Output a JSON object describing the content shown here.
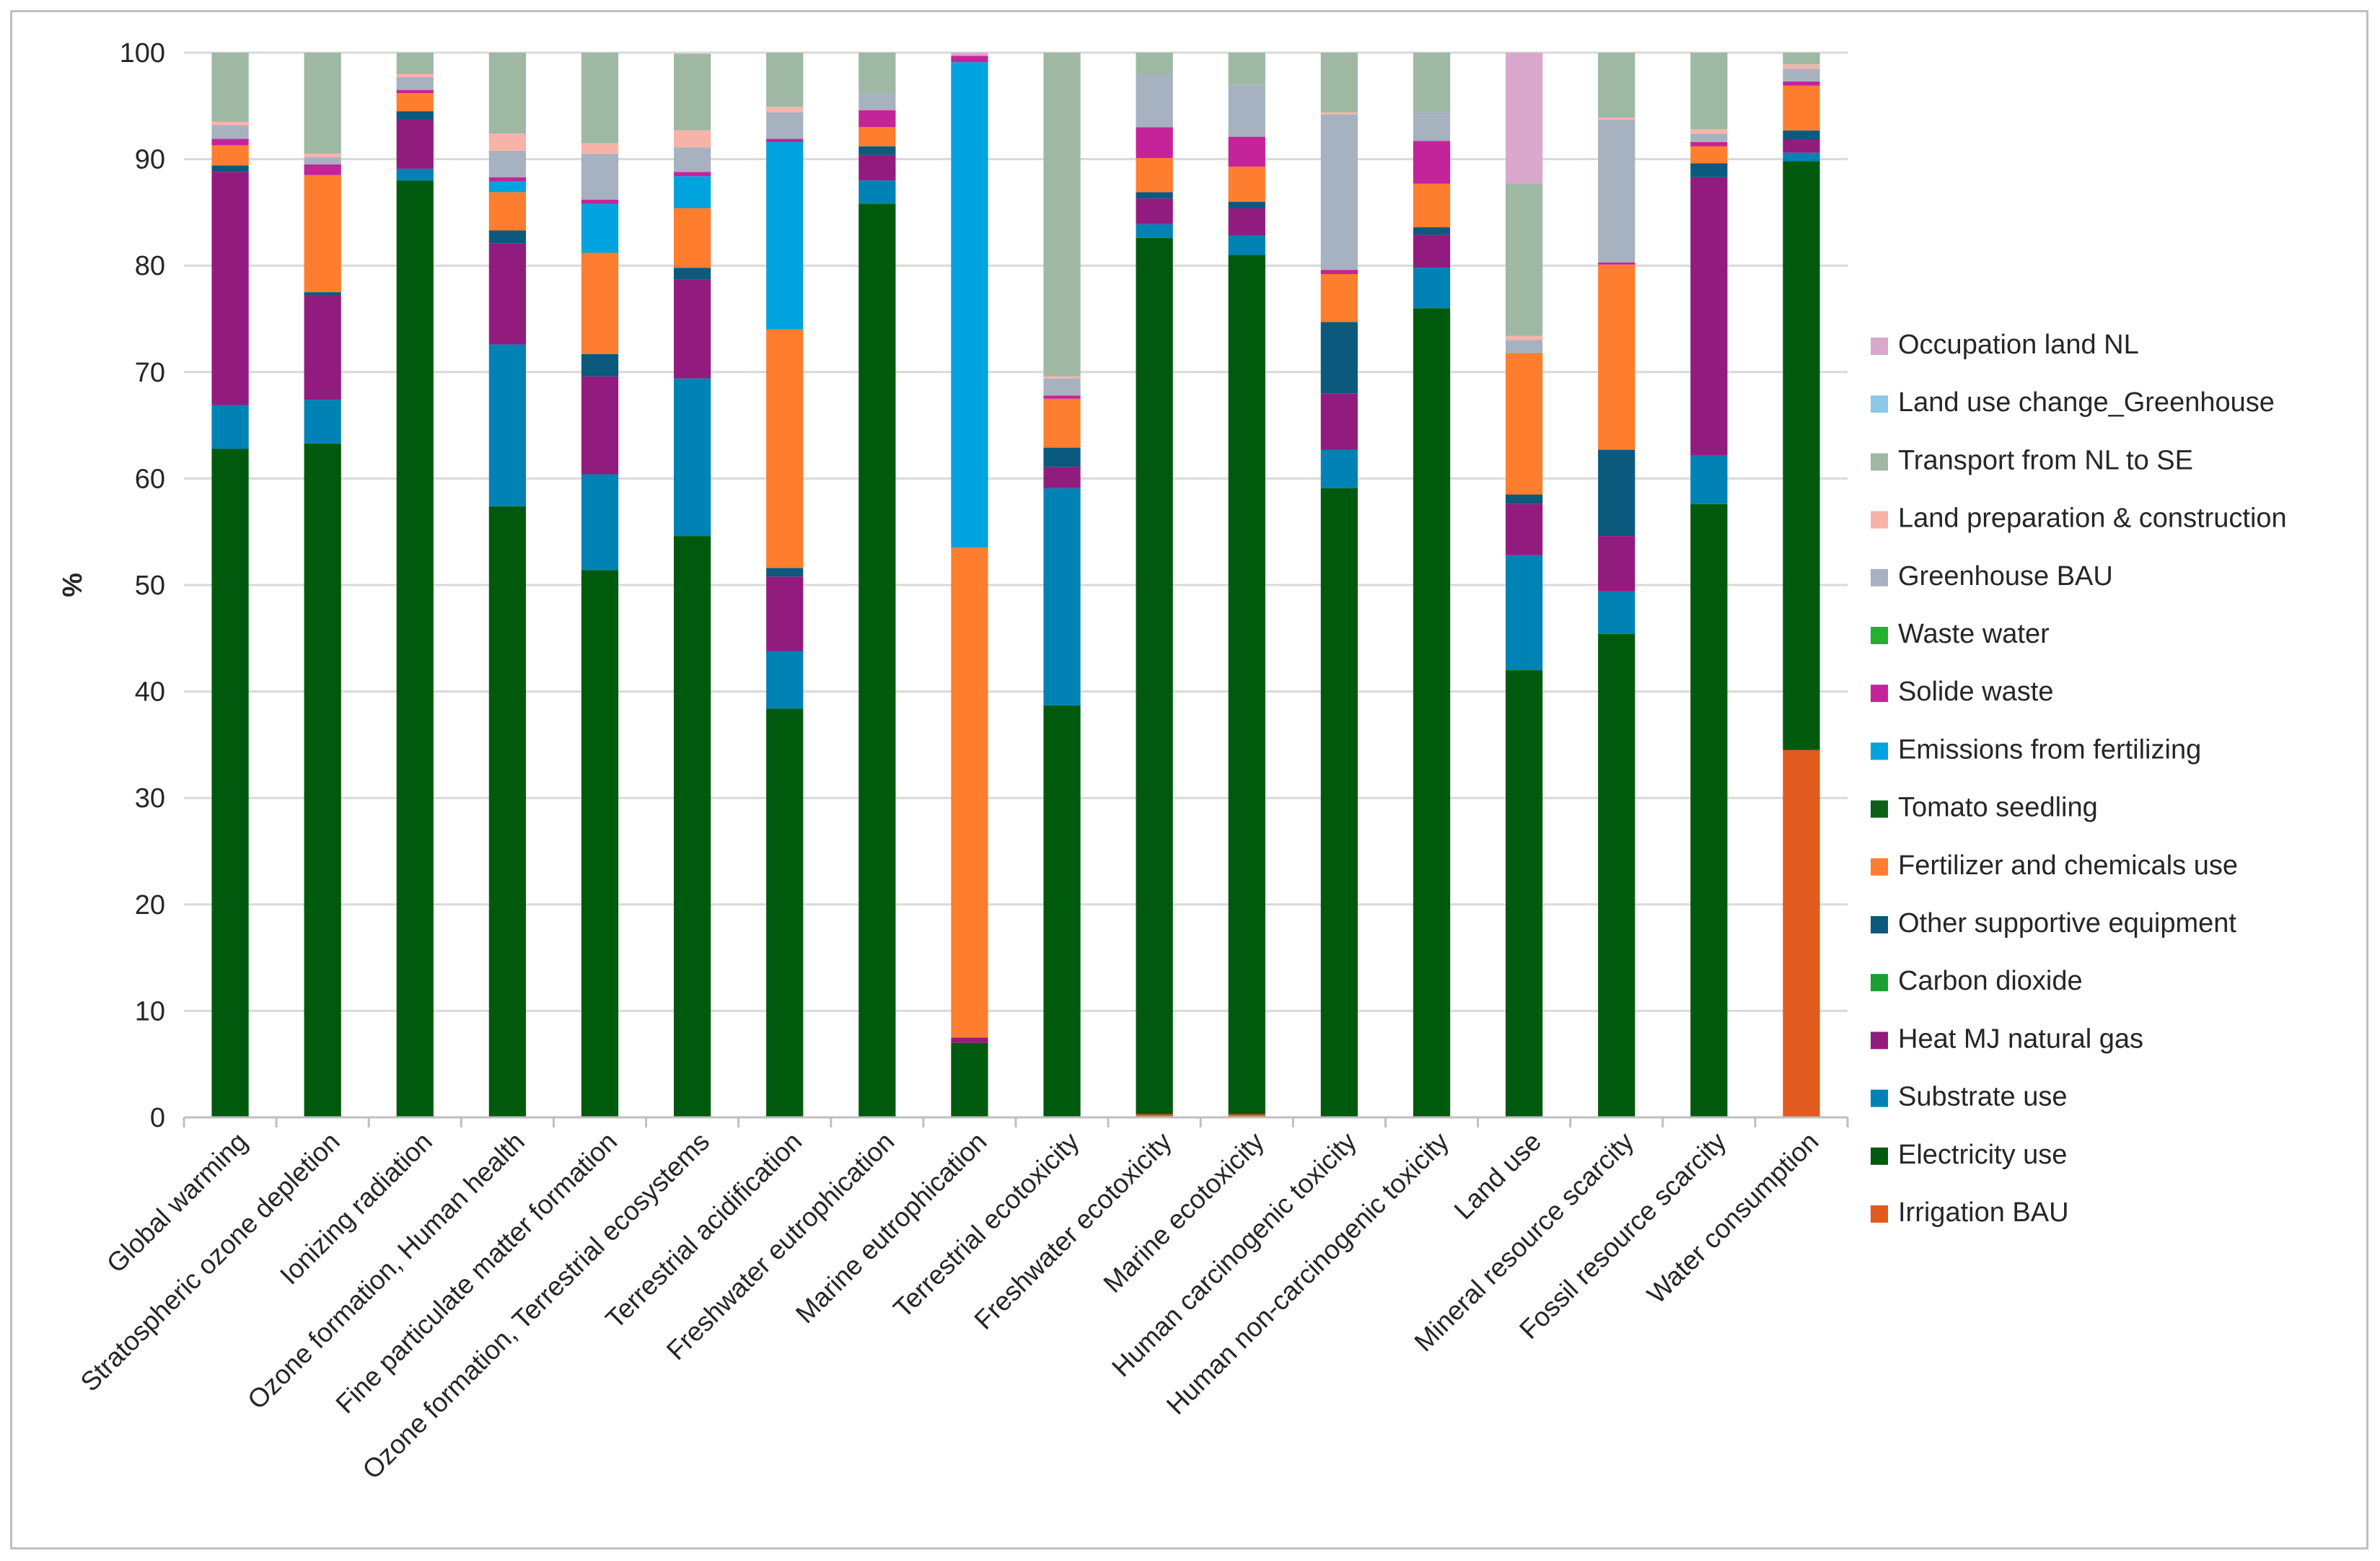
{
  "chart_data": {
    "type": "bar",
    "stacked": true,
    "title": "",
    "xlabel": "",
    "ylabel": "%",
    "ylim": [
      0,
      100
    ],
    "yticks": [
      0,
      10,
      20,
      30,
      40,
      50,
      60,
      70,
      80,
      90,
      100
    ],
    "grid": true,
    "legend_position": "right",
    "categories": [
      "Global warming",
      "Stratospheric ozone depletion",
      "Ionizing radiation",
      "Ozone formation, Human health",
      "Fine particulate matter formation",
      "Ozone formation, Terrestrial ecosystems",
      "Terrestrial acidification",
      "Freshwater eutrophication",
      "Marine eutrophication",
      "Terrestrial ecotoxicity",
      "Freshwater ecotoxicity",
      "Marine ecotoxicity",
      "Human carcinogenic toxicity",
      "Human non-carcinogenic toxicity",
      "Land use",
      "Mineral resource scarcity",
      "Fossil resource scarcity",
      "Water consumption"
    ],
    "series": [
      {
        "name": "Irrigation BAU",
        "color": "#E15A1E",
        "values": [
          0,
          0,
          0,
          0,
          0,
          0,
          0,
          0,
          0,
          0,
          0.3,
          0.3,
          0,
          0,
          0,
          0,
          0,
          34.5
        ]
      },
      {
        "name": "Electricity use",
        "color": "#005A0E",
        "values": [
          62.8,
          63.3,
          88.0,
          57.4,
          51.4,
          54.6,
          38.4,
          85.8,
          7.0,
          38.7,
          82.3,
          80.7,
          59.1,
          76.0,
          42.0,
          45.4,
          57.6,
          55.3
        ]
      },
      {
        "name": "Substrate use",
        "color": "#0082B4",
        "values": [
          4.1,
          4.1,
          1.1,
          15.2,
          9.0,
          14.8,
          5.4,
          2.2,
          0,
          20.4,
          1.3,
          1.8,
          3.6,
          3.8,
          10.8,
          4.0,
          4.6,
          0.8
        ]
      },
      {
        "name": "Heat MJ natural gas",
        "color": "#921C7E",
        "values": [
          21.9,
          9.8,
          4.6,
          9.5,
          9.2,
          9.3,
          7.0,
          2.4,
          0.5,
          2.0,
          2.4,
          2.6,
          5.3,
          3.1,
          4.8,
          5.2,
          26.1,
          1.2
        ]
      },
      {
        "name": "Carbon dioxide",
        "color": "#1A9E35",
        "values": [
          0,
          0,
          0,
          0,
          0,
          0,
          0,
          0,
          0,
          0,
          0,
          0,
          0,
          0,
          0,
          0,
          0,
          0
        ]
      },
      {
        "name": "Other supportive equipment",
        "color": "#0B5A7E",
        "values": [
          0.6,
          0.3,
          0.8,
          1.2,
          2.1,
          1.1,
          0.8,
          0.8,
          0,
          1.8,
          0.6,
          0.6,
          6.7,
          0.7,
          0.9,
          8.1,
          1.3,
          0.9
        ]
      },
      {
        "name": "Fertilizer and chemicals use",
        "color": "#FF7D2E",
        "values": [
          1.9,
          11.0,
          1.7,
          3.6,
          9.5,
          5.6,
          22.4,
          1.8,
          46.0,
          4.6,
          3.2,
          3.3,
          4.5,
          4.1,
          13.3,
          17.4,
          1.6,
          4.2
        ]
      },
      {
        "name": "Tomato seedling",
        "color": "#0E5F18",
        "values": [
          0,
          0,
          0,
          0,
          0,
          0,
          0,
          0,
          0,
          0,
          0,
          0,
          0,
          0,
          0,
          0,
          0,
          0
        ]
      },
      {
        "name": "Emissions from fertilizing",
        "color": "#00A3DD",
        "values": [
          0,
          0,
          0,
          1.0,
          4.6,
          3.0,
          17.6,
          0,
          45.6,
          0,
          0,
          0,
          0,
          0,
          0,
          0,
          0,
          0
        ]
      },
      {
        "name": "Solide waste",
        "color": "#C4239A",
        "values": [
          0.6,
          1.0,
          0.3,
          0.4,
          0.4,
          0.4,
          0.3,
          1.6,
          0.6,
          0.3,
          2.9,
          2.8,
          0.4,
          4.0,
          0,
          0.2,
          0.4,
          0.4
        ]
      },
      {
        "name": "Waste water",
        "color": "#25B02E",
        "values": [
          0,
          0,
          0,
          0,
          0,
          0,
          0,
          0,
          0,
          0,
          0,
          0,
          0,
          0,
          0,
          0,
          0,
          0
        ]
      },
      {
        "name": "Greenhouse BAU",
        "color": "#A6B2BF",
        "values": [
          1.3,
          0.7,
          1.2,
          2.5,
          4.3,
          2.3,
          2.5,
          1.6,
          0,
          1.6,
          5.0,
          4.9,
          14.6,
          2.7,
          1.2,
          13.4,
          0.8,
          1.2
        ]
      },
      {
        "name": "Land preparation & construction",
        "color": "#F8B3A8",
        "values": [
          0.3,
          0.3,
          0.3,
          1.6,
          1.0,
          1.6,
          0.5,
          0,
          0,
          0.2,
          0,
          0,
          0.2,
          0,
          0.4,
          0.2,
          0.4,
          0.4
        ]
      },
      {
        "name": "Transport from NL to SE",
        "color": "#9EB8A4",
        "values": [
          6.5,
          9.5,
          2.0,
          7.6,
          8.5,
          7.2,
          5.1,
          3.8,
          0,
          30.4,
          2.0,
          3.0,
          5.6,
          5.6,
          14.3,
          6.1,
          7.2,
          1.1
        ]
      },
      {
        "name": "Land use change_Greenhouse",
        "color": "#8CC8E8",
        "values": [
          0,
          0,
          0,
          0,
          0,
          0,
          0,
          0,
          0,
          0,
          0,
          0,
          0,
          0,
          0,
          0,
          0,
          0
        ]
      },
      {
        "name": "Occupation land NL",
        "color": "#D9A8CC",
        "values": [
          0,
          0,
          0,
          0,
          0,
          0,
          0,
          0,
          0.3,
          0,
          0,
          0,
          0,
          0,
          12.3,
          0,
          0,
          0
        ]
      }
    ]
  }
}
